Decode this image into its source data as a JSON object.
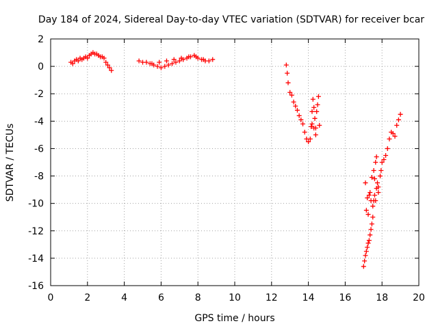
{
  "chart_data": {
    "type": "scatter",
    "title": "Day 184 of 2024, Sidereal Day-to-day VTEC variation (SDTVAR) for receiver bcar",
    "xlabel": "GPS time / hours",
    "ylabel": "SDTVAR / TECUs",
    "xlim": [
      0,
      20
    ],
    "ylim": [
      -16,
      2
    ],
    "xticks": [
      0,
      2,
      4,
      6,
      8,
      10,
      12,
      14,
      16,
      18,
      20
    ],
    "yticks": [
      2,
      0,
      -2,
      -4,
      -6,
      -8,
      -10,
      -12,
      -14,
      -16
    ],
    "grid": true,
    "marker": "+",
    "color": "#ff0000",
    "series": [
      {
        "name": "segment-1",
        "x": [
          1.1,
          1.2,
          1.3,
          1.4,
          1.5,
          1.6,
          1.7,
          1.8,
          1.9,
          2.0,
          2.1,
          2.2,
          2.3,
          2.4,
          2.5,
          2.6,
          2.7,
          2.8,
          2.9,
          3.0,
          3.1,
          3.2,
          3.3
        ],
        "y": [
          0.3,
          0.2,
          0.4,
          0.5,
          0.4,
          0.6,
          0.5,
          0.6,
          0.7,
          0.6,
          0.8,
          0.9,
          1.0,
          0.9,
          0.9,
          0.8,
          0.7,
          0.7,
          0.6,
          0.3,
          0.1,
          -0.1,
          -0.3
        ]
      },
      {
        "name": "segment-2",
        "x": [
          4.8,
          5.0,
          5.2,
          5.4,
          5.6,
          5.8,
          6.0,
          6.2,
          6.4,
          6.6,
          6.8,
          7.0,
          7.2,
          7.4,
          7.6,
          7.8,
          8.0,
          8.2,
          8.4,
          8.6,
          8.8,
          5.5,
          5.9,
          6.3,
          6.7,
          7.1,
          7.5,
          7.9,
          8.3
        ],
        "y": [
          0.4,
          0.3,
          0.3,
          0.2,
          0.1,
          0.0,
          -0.1,
          0.0,
          0.1,
          0.2,
          0.3,
          0.4,
          0.5,
          0.6,
          0.7,
          0.8,
          0.6,
          0.5,
          0.4,
          0.4,
          0.5,
          0.2,
          0.3,
          0.4,
          0.5,
          0.6,
          0.7,
          0.7,
          0.5
        ]
      },
      {
        "name": "segment-3",
        "x": [
          12.8,
          12.85,
          12.9,
          13.0,
          13.1,
          13.2,
          13.3,
          13.4,
          13.5,
          13.6,
          13.7,
          13.8,
          13.9,
          14.0,
          14.1,
          14.15,
          14.2,
          14.25,
          14.3,
          14.35,
          14.4,
          14.45,
          14.5,
          14.55,
          14.6,
          14.2,
          14.3,
          14.4
        ],
        "y": [
          0.1,
          -0.5,
          -1.2,
          -1.9,
          -2.1,
          -2.6,
          -2.9,
          -3.2,
          -3.6,
          -3.9,
          -4.2,
          -4.8,
          -5.3,
          -5.5,
          -5.3,
          -4.4,
          -3.3,
          -2.4,
          -3.0,
          -3.8,
          -4.5,
          -3.3,
          -2.8,
          -2.2,
          -4.3,
          -4.2,
          -4.5,
          -5.0
        ]
      },
      {
        "name": "segment-4",
        "x": [
          17.0,
          17.05,
          17.1,
          17.15,
          17.2,
          17.25,
          17.3,
          17.35,
          17.4,
          17.45,
          17.5,
          17.55,
          17.6,
          17.65,
          17.7,
          17.75,
          17.8,
          17.1,
          17.2,
          17.3,
          17.4,
          17.5,
          17.6,
          17.7,
          17.8,
          17.9,
          17.95,
          18.0,
          18.1,
          18.2,
          18.3,
          18.4,
          18.5,
          18.6,
          18.7,
          18.8,
          18.9,
          19.0,
          17.15,
          17.25,
          17.35,
          17.45,
          17.55,
          17.65
        ],
        "y": [
          -14.6,
          -14.2,
          -13.8,
          -13.5,
          -13.2,
          -12.9,
          -12.7,
          -12.3,
          -11.9,
          -11.5,
          -11.0,
          -9.8,
          -8.2,
          -7.0,
          -6.6,
          -8.5,
          -9.2,
          -8.5,
          -9.6,
          -9.4,
          -9.8,
          -10.2,
          -9.4,
          -8.9,
          -8.8,
          -8.0,
          -7.6,
          -7.0,
          -6.8,
          -6.5,
          -6.0,
          -5.3,
          -4.8,
          -4.9,
          -5.1,
          -4.3,
          -3.9,
          -3.5,
          -10.5,
          -10.8,
          -9.2,
          -8.1,
          -7.6,
          -9.8
        ]
      }
    ]
  }
}
